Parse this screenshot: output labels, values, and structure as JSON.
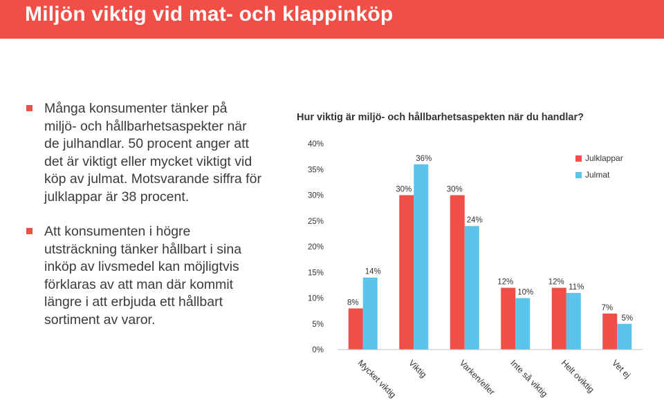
{
  "page": {
    "title": "Miljön viktig vid mat- och klappinköp"
  },
  "bullets": [
    "Många konsumenter tänker på miljö- och hållbarhetsaspekter när de julhandlar. 50 procent anger att det är viktigt eller mycket viktigt vid köp av julmat. Motsvarande siffra för julklappar är 38 procent.",
    "Att konsumenten i högre utsträckning tänker hållbart i sina inköp av livsmedel kan möjligtvis förklaras av att man där kommit längre i att erbjuda ett hållbart sortiment av varor."
  ],
  "colors": {
    "title_bar": "#f04e46",
    "julklappar": "#f04e46",
    "julmat": "#5bc4eb",
    "text": "#3a3a3a"
  },
  "chart_data": {
    "type": "bar",
    "title": "Hur viktig är miljö- och hållbarhetsaspekten när du handlar?",
    "categories": [
      "Mycket viktig",
      "Viktig",
      "Varken/eller",
      "Inte så viktig",
      "Helt oviktig",
      "Vet ej"
    ],
    "series": [
      {
        "name": "Julklappar",
        "values": [
          8,
          30,
          30,
          12,
          12,
          7
        ],
        "labels": [
          "8%",
          "30%",
          "30%",
          "12%",
          "12%",
          "7%"
        ]
      },
      {
        "name": "Julmat",
        "values": [
          14,
          36,
          24,
          10,
          11,
          5
        ],
        "labels": [
          "14%",
          "36%",
          "24%",
          "10%",
          "11%",
          "5%"
        ]
      }
    ],
    "ylim": [
      0,
      40
    ],
    "y_ticks": [
      "0%",
      "5%",
      "10%",
      "15%",
      "20%",
      "25%",
      "30%",
      "35%",
      "40%"
    ],
    "legend_position": "right",
    "grid": false
  }
}
